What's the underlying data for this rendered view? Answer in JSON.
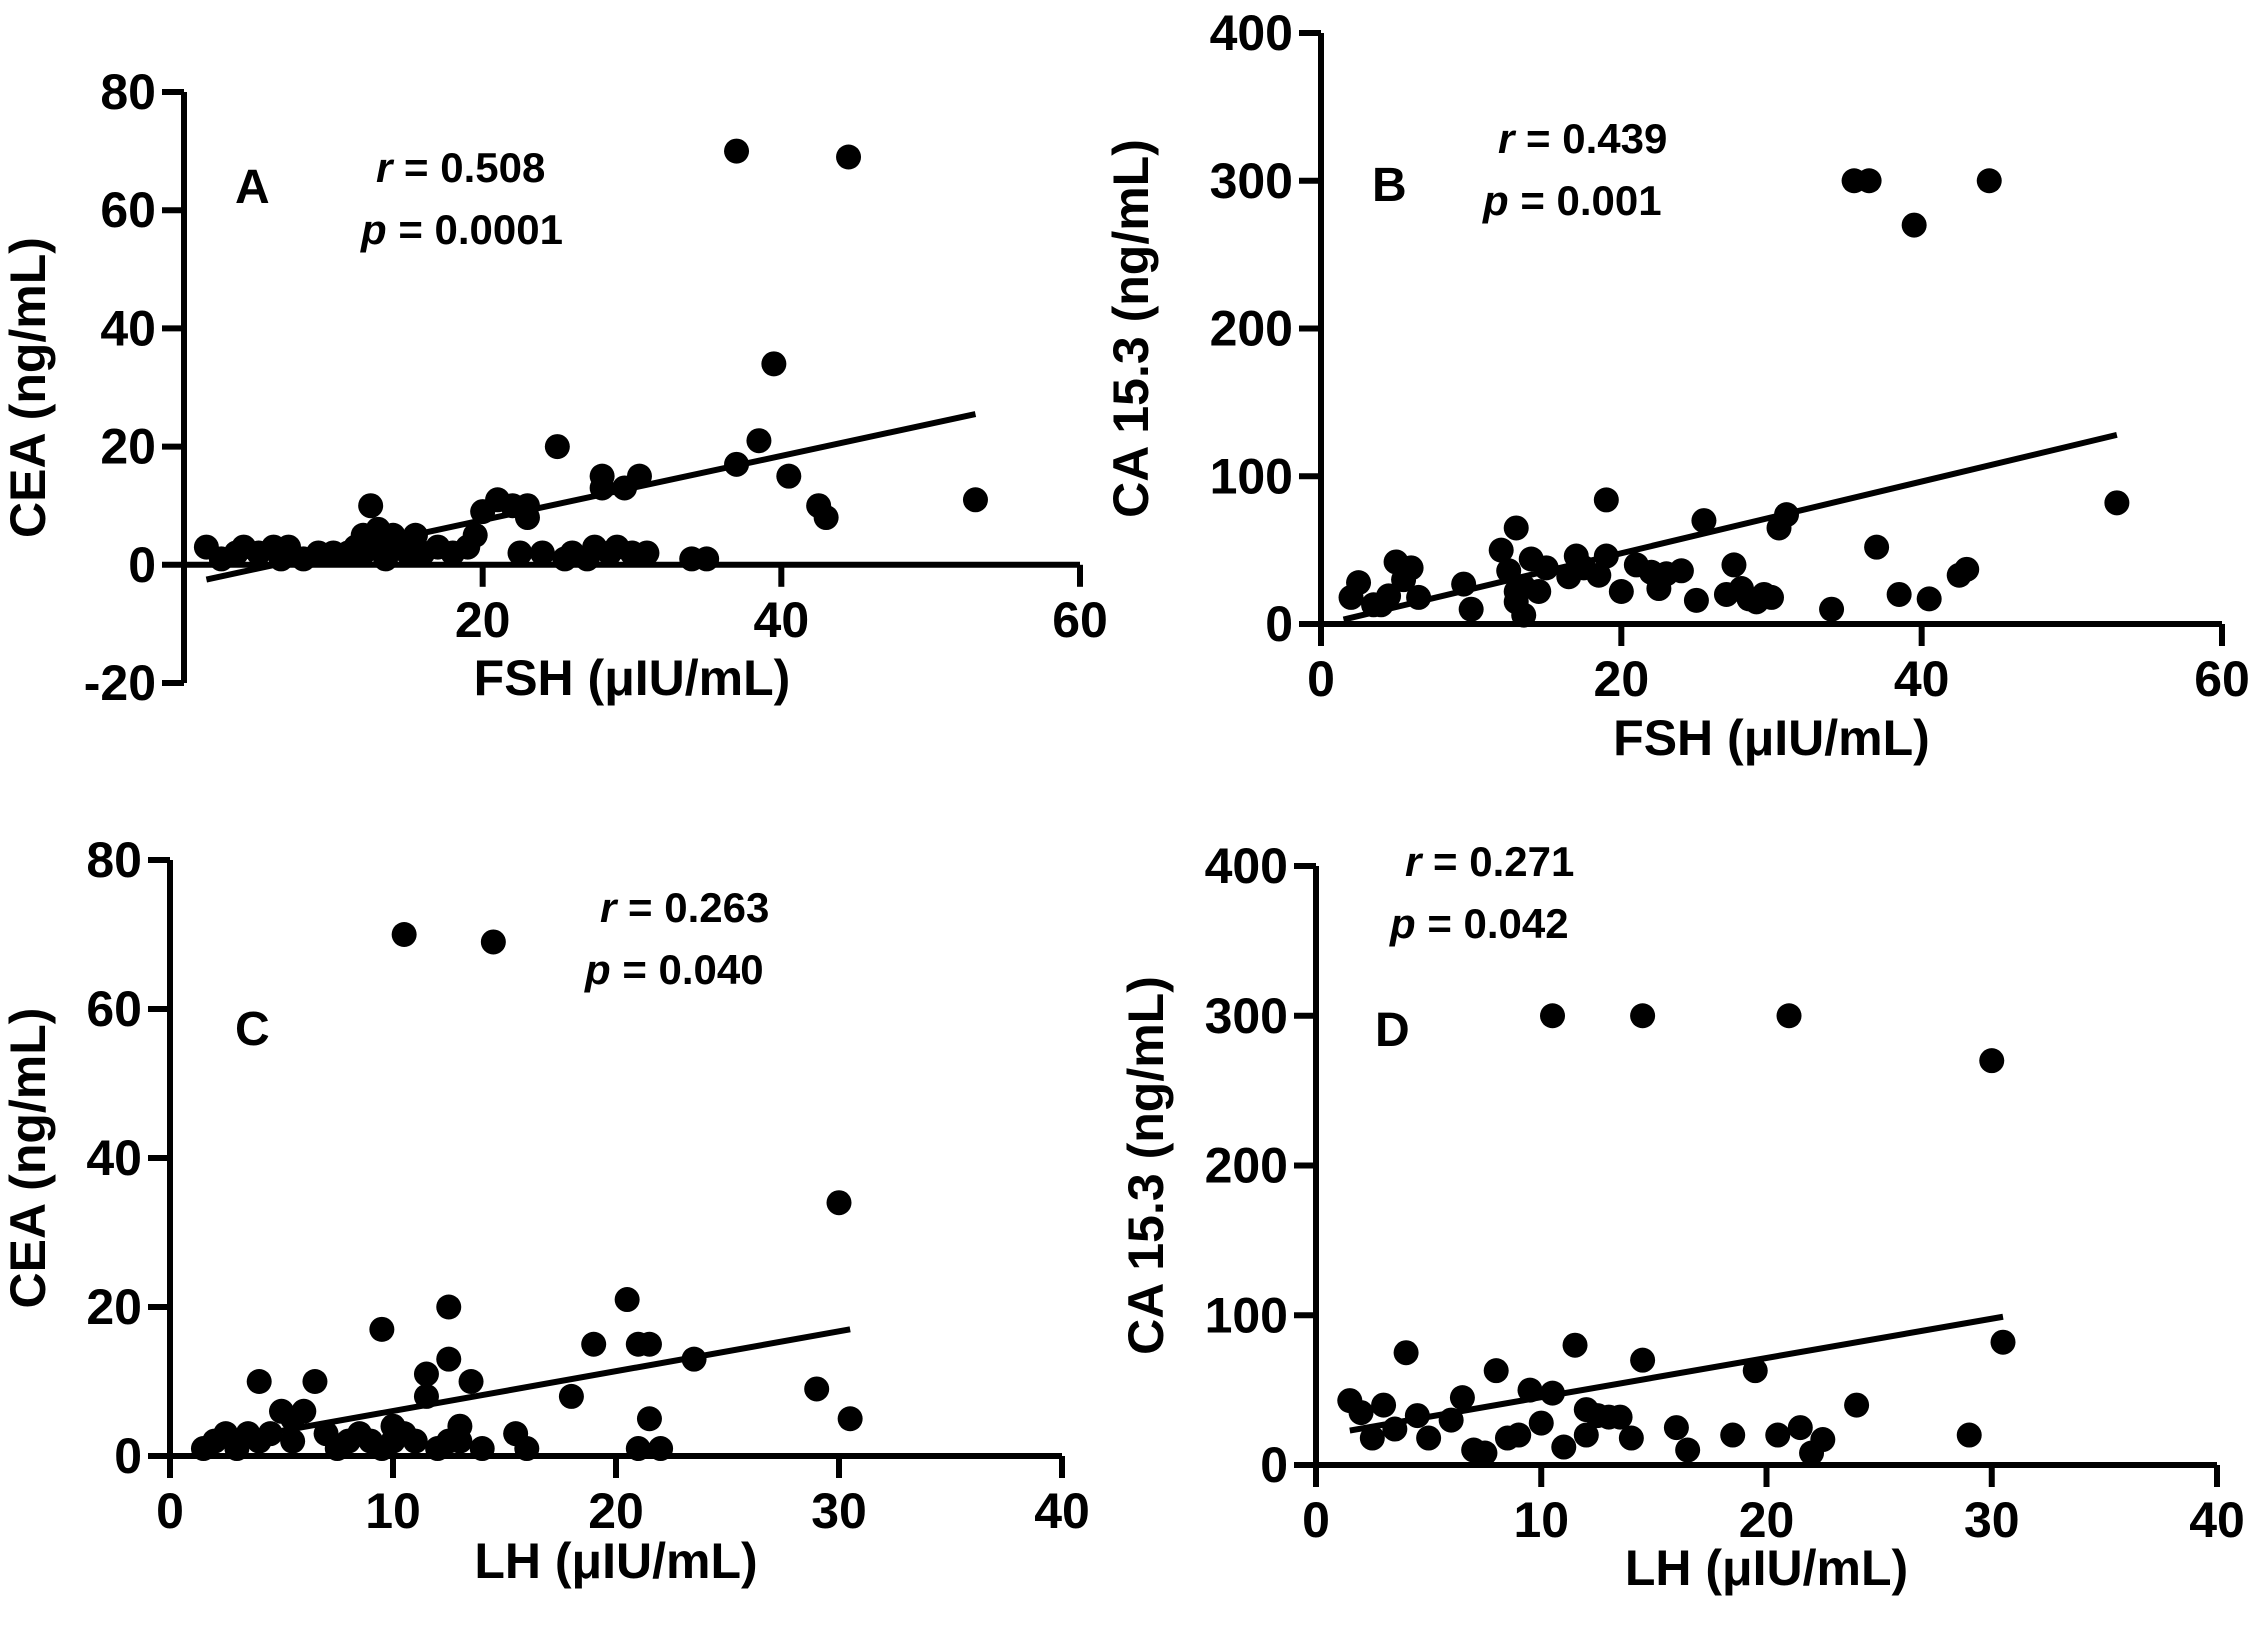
{
  "chart_data": [
    {
      "type": "scatter",
      "panel_label": "A",
      "xlabel": "FSH (μIU/mL)",
      "ylabel": "CEA (ng/mL)",
      "xlim": [
        0,
        60
      ],
      "ylim": [
        -20,
        80
      ],
      "xticks": [
        20,
        40,
        60
      ],
      "yticks": [
        -20,
        0,
        20,
        40,
        60,
        80
      ],
      "stat_r": "0.508",
      "stat_p": "0.0001",
      "stat_pos": "top-center",
      "fit_line": [
        [
          1.5,
          -2.5
        ],
        [
          53,
          25.5
        ]
      ],
      "points": [
        [
          1.5,
          3
        ],
        [
          2.5,
          1
        ],
        [
          3.5,
          2
        ],
        [
          4,
          3
        ],
        [
          5,
          2
        ],
        [
          6,
          3
        ],
        [
          6.5,
          1
        ],
        [
          7,
          3
        ],
        [
          8,
          1
        ],
        [
          9,
          2
        ],
        [
          10,
          2
        ],
        [
          11,
          2
        ],
        [
          11.5,
          3
        ],
        [
          12,
          5
        ],
        [
          12,
          2
        ],
        [
          12.5,
          4
        ],
        [
          12.5,
          10
        ],
        [
          13,
          6
        ],
        [
          13,
          3
        ],
        [
          13.5,
          1
        ],
        [
          14,
          5
        ],
        [
          14.5,
          3
        ],
        [
          15,
          2
        ],
        [
          15.5,
          5
        ],
        [
          16,
          2
        ],
        [
          17,
          3
        ],
        [
          18,
          2
        ],
        [
          19,
          3
        ],
        [
          19.5,
          5
        ],
        [
          20,
          9
        ],
        [
          21,
          11
        ],
        [
          22,
          10
        ],
        [
          22.5,
          2
        ],
        [
          23,
          10
        ],
        [
          23,
          8
        ],
        [
          24,
          2
        ],
        [
          25,
          20
        ],
        [
          25.5,
          1
        ],
        [
          26,
          2
        ],
        [
          27,
          1
        ],
        [
          27.5,
          3
        ],
        [
          28,
          15
        ],
        [
          28,
          13
        ],
        [
          28.5,
          2
        ],
        [
          29,
          3
        ],
        [
          29.5,
          13
        ],
        [
          30,
          2
        ],
        [
          30.5,
          15
        ],
        [
          31,
          2
        ],
        [
          34,
          1
        ],
        [
          35,
          1
        ],
        [
          37,
          70
        ],
        [
          37,
          17
        ],
        [
          38.5,
          21
        ],
        [
          39.5,
          34
        ],
        [
          40.5,
          15
        ],
        [
          42.5,
          10
        ],
        [
          43,
          8
        ],
        [
          44.5,
          69
        ],
        [
          53,
          11
        ]
      ]
    },
    {
      "type": "scatter",
      "panel_label": "B",
      "xlabel": "FSH (μIU/mL)",
      "ylabel": "CA 15.3 (ng/mL)",
      "xlim": [
        0,
        60
      ],
      "ylim": [
        0,
        400
      ],
      "xticks": [
        0,
        20,
        40,
        60
      ],
      "yticks": [
        0,
        100,
        200,
        300,
        400
      ],
      "stat_r": "0.439",
      "stat_p": "0.001",
      "stat_pos": "top-left",
      "fit_line": [
        [
          1.5,
          3
        ],
        [
          53,
          128
        ]
      ],
      "points": [
        [
          2,
          18
        ],
        [
          2.5,
          28
        ],
        [
          3.5,
          13
        ],
        [
          4,
          13
        ],
        [
          4.5,
          19
        ],
        [
          5,
          42
        ],
        [
          5.5,
          30
        ],
        [
          6,
          38
        ],
        [
          6.5,
          18
        ],
        [
          9.5,
          27
        ],
        [
          10,
          10
        ],
        [
          12,
          50
        ],
        [
          12.5,
          36
        ],
        [
          13,
          22
        ],
        [
          13,
          15
        ],
        [
          13,
          65
        ],
        [
          13.5,
          25
        ],
        [
          13.5,
          6
        ],
        [
          14,
          44
        ],
        [
          14.5,
          22
        ],
        [
          15,
          38
        ],
        [
          16.5,
          32
        ],
        [
          17,
          46
        ],
        [
          17.5,
          38
        ],
        [
          18.5,
          33
        ],
        [
          19,
          46
        ],
        [
          19,
          84
        ],
        [
          20,
          22
        ],
        [
          21,
          40
        ],
        [
          22,
          35
        ],
        [
          22.5,
          24
        ],
        [
          23,
          34
        ],
        [
          24,
          36
        ],
        [
          25,
          16
        ],
        [
          25.5,
          70
        ],
        [
          27,
          20
        ],
        [
          27.5,
          40
        ],
        [
          28,
          24
        ],
        [
          28.5,
          17
        ],
        [
          29,
          15
        ],
        [
          29.5,
          20
        ],
        [
          30,
          18
        ],
        [
          30.5,
          65
        ],
        [
          31,
          74
        ],
        [
          34,
          10
        ],
        [
          35.5,
          300
        ],
        [
          36.5,
          300
        ],
        [
          37,
          52
        ],
        [
          38.5,
          20
        ],
        [
          39.5,
          270
        ],
        [
          40.5,
          17
        ],
        [
          42.5,
          33
        ],
        [
          43,
          37
        ],
        [
          44.5,
          300
        ],
        [
          53,
          82
        ]
      ]
    },
    {
      "type": "scatter",
      "panel_label": "C",
      "xlabel": "LH (μIU/mL)",
      "ylabel": "CEA (ng/mL)",
      "xlim": [
        0,
        40
      ],
      "ylim": [
        0,
        80
      ],
      "xticks": [
        0,
        10,
        20,
        30,
        40
      ],
      "yticks": [
        0,
        20,
        40,
        60,
        80
      ],
      "stat_r": "0.263",
      "stat_p": "0.040",
      "stat_pos": "top-center",
      "fit_line": [
        [
          1.5,
          1.5
        ],
        [
          30.5,
          17
        ]
      ],
      "points": [
        [
          1.5,
          1
        ],
        [
          2,
          2
        ],
        [
          2.5,
          3
        ],
        [
          3,
          2
        ],
        [
          3,
          1
        ],
        [
          3.5,
          3
        ],
        [
          4,
          2
        ],
        [
          4,
          10
        ],
        [
          4.5,
          3
        ],
        [
          5,
          6
        ],
        [
          5.5,
          5
        ],
        [
          5.5,
          2
        ],
        [
          6,
          6
        ],
        [
          6.5,
          10
        ],
        [
          7,
          3
        ],
        [
          7.5,
          1
        ],
        [
          8,
          2
        ],
        [
          8.5,
          3
        ],
        [
          9,
          2
        ],
        [
          9.5,
          1
        ],
        [
          9.5,
          17
        ],
        [
          10,
          4
        ],
        [
          10,
          2
        ],
        [
          10.5,
          70
        ],
        [
          10.5,
          3
        ],
        [
          11,
          2
        ],
        [
          11.5,
          8
        ],
        [
          11.5,
          11
        ],
        [
          12,
          1
        ],
        [
          12.5,
          2
        ],
        [
          12.5,
          20
        ],
        [
          12.5,
          13
        ],
        [
          13,
          4
        ],
        [
          13,
          2
        ],
        [
          13.5,
          10
        ],
        [
          14,
          1
        ],
        [
          14.5,
          69
        ],
        [
          15.5,
          3
        ],
        [
          16,
          1
        ],
        [
          18,
          8
        ],
        [
          19,
          15
        ],
        [
          20.5,
          21
        ],
        [
          21,
          1
        ],
        [
          21,
          15
        ],
        [
          21.5,
          5
        ],
        [
          21.5,
          15
        ],
        [
          22,
          1
        ],
        [
          23.5,
          13
        ],
        [
          29,
          9
        ],
        [
          30,
          34
        ],
        [
          30.5,
          5
        ]
      ]
    },
    {
      "type": "scatter",
      "panel_label": "D",
      "xlabel": "LH (μIU/mL)",
      "ylabel": "CA 15.3 (ng/mL)",
      "xlim": [
        0,
        40
      ],
      "ylim": [
        0,
        400
      ],
      "xticks": [
        0,
        10,
        20,
        30,
        40
      ],
      "yticks": [
        0,
        100,
        200,
        300,
        400
      ],
      "stat_r": "0.271",
      "stat_p": "0.042",
      "stat_pos": "top-left",
      "fit_line": [
        [
          1.5,
          23
        ],
        [
          30.5,
          99
        ]
      ],
      "points": [
        [
          1.5,
          43
        ],
        [
          2,
          35
        ],
        [
          2.5,
          18
        ],
        [
          3,
          40
        ],
        [
          3.5,
          24
        ],
        [
          4,
          75
        ],
        [
          4.5,
          33
        ],
        [
          5,
          18
        ],
        [
          6,
          30
        ],
        [
          6.5,
          45
        ],
        [
          7,
          10
        ],
        [
          7.5,
          8
        ],
        [
          8,
          63
        ],
        [
          8.5,
          18
        ],
        [
          9,
          20
        ],
        [
          9.5,
          50
        ],
        [
          10,
          28
        ],
        [
          10.5,
          48
        ],
        [
          10.5,
          300
        ],
        [
          11,
          12
        ],
        [
          11.5,
          80
        ],
        [
          12,
          37
        ],
        [
          12,
          20
        ],
        [
          12.5,
          33
        ],
        [
          13,
          32
        ],
        [
          13.5,
          32
        ],
        [
          14,
          18
        ],
        [
          14.5,
          70
        ],
        [
          14.5,
          300
        ],
        [
          16,
          25
        ],
        [
          16.5,
          10
        ],
        [
          18.5,
          20
        ],
        [
          19.5,
          63
        ],
        [
          20.5,
          20
        ],
        [
          21,
          300
        ],
        [
          21.5,
          25
        ],
        [
          22,
          8
        ],
        [
          22.5,
          17
        ],
        [
          24,
          40
        ],
        [
          29,
          20
        ],
        [
          30,
          270
        ],
        [
          30.5,
          82
        ]
      ]
    }
  ]
}
